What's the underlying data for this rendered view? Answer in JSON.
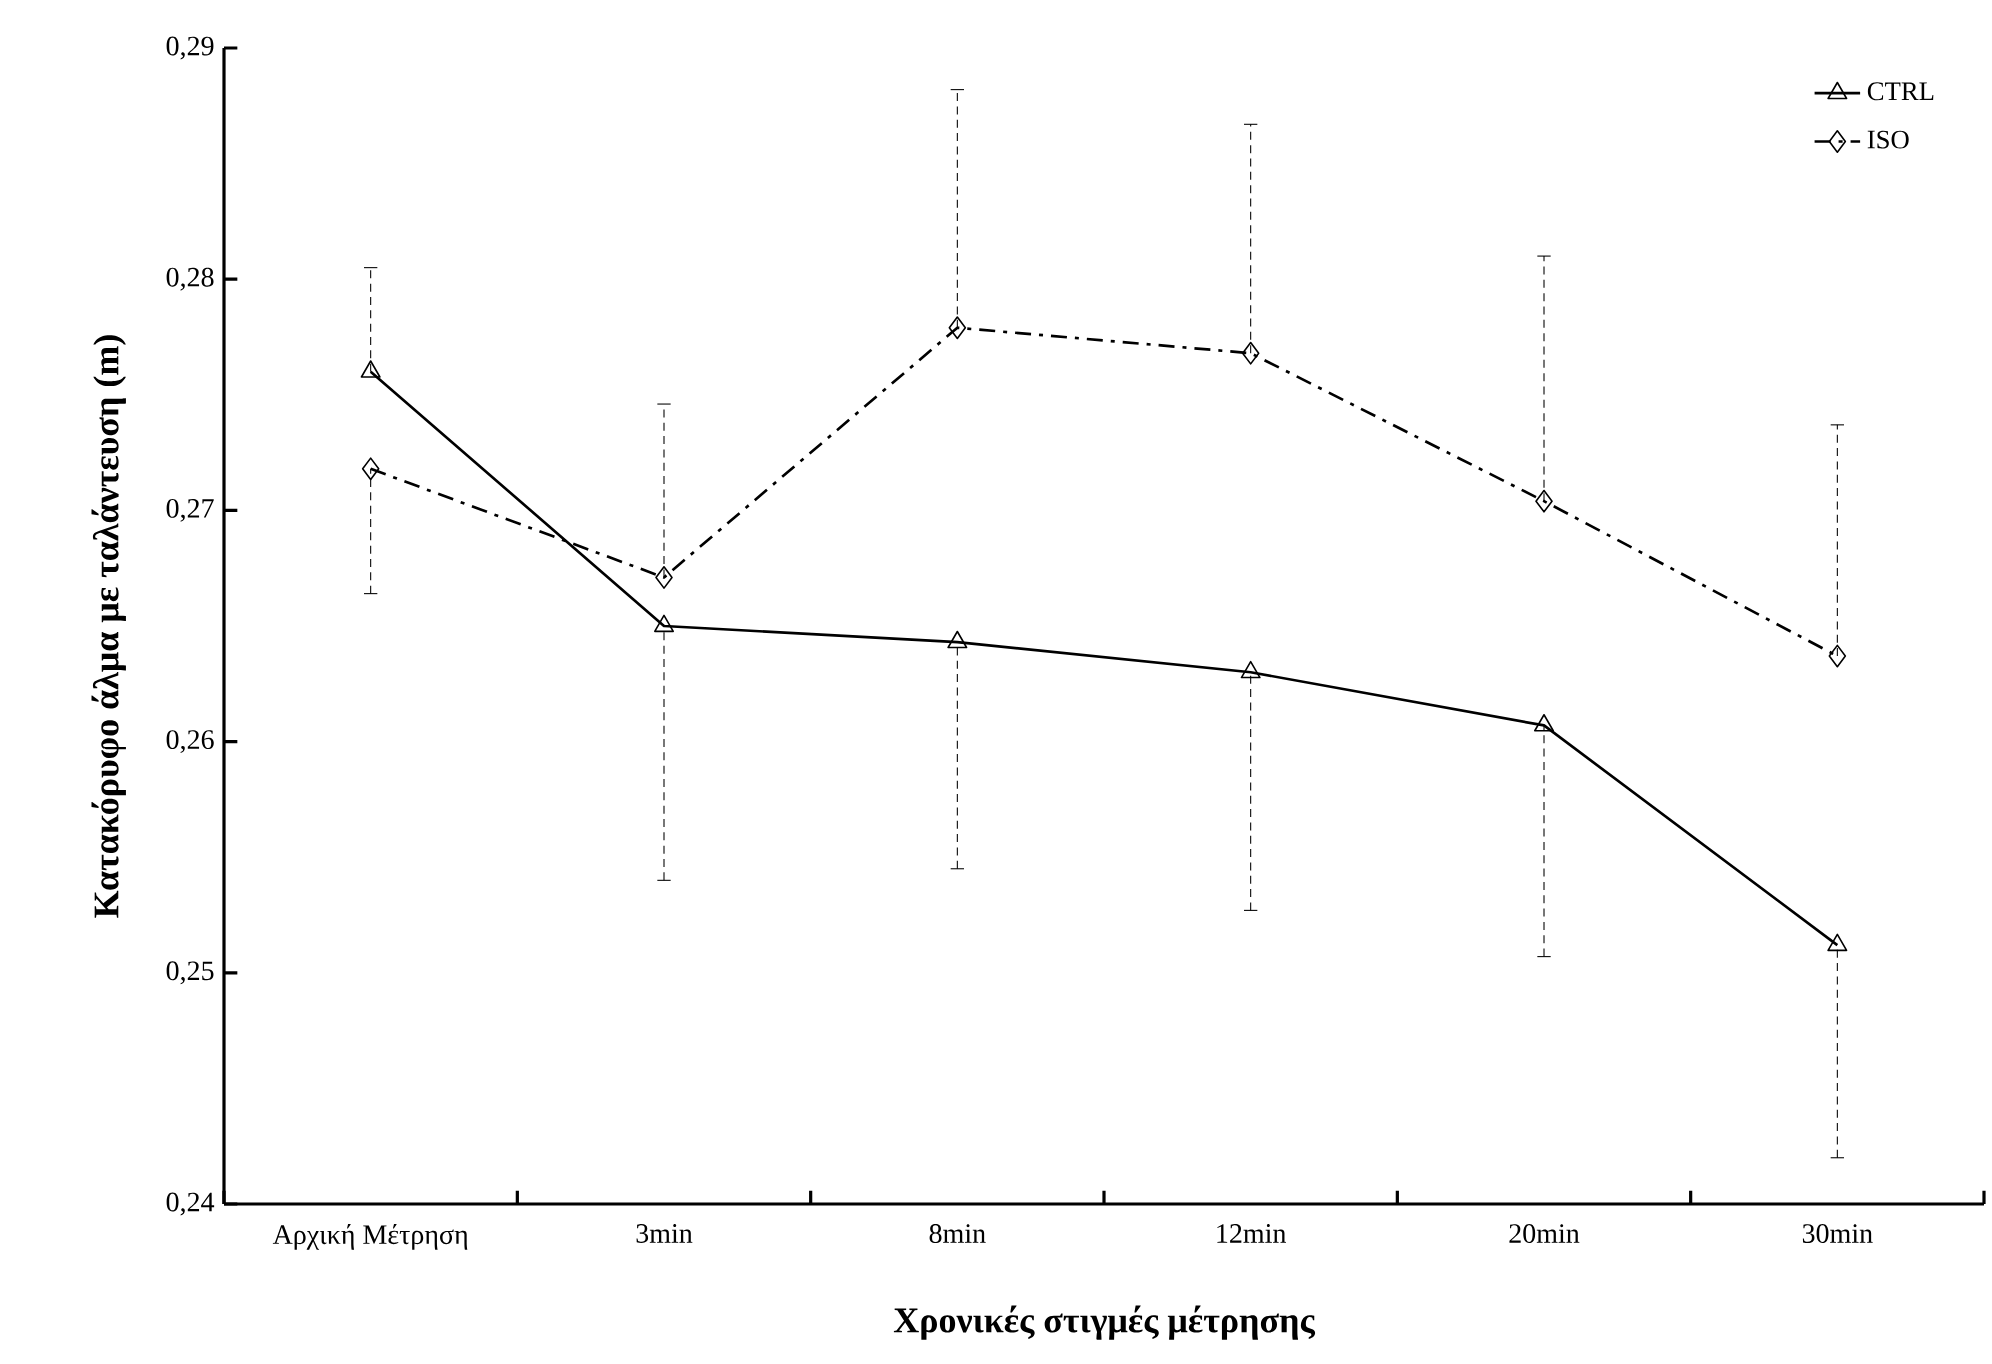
{
  "chart_data": {
    "type": "line",
    "xlabel": "Χρονικές στιγμές μέτρησης",
    "ylabel": "Κατακόρυφο άλμα με ταλάντευση (m)",
    "categories": [
      "Αρχική Μέτρηση",
      "3min",
      "8min",
      "12min",
      "20min",
      "30min"
    ],
    "series": [
      {
        "name": "CTRL",
        "color": "#000000",
        "marker": "triangle",
        "line_style": "solid",
        "values": [
          0.276,
          0.265,
          0.2643,
          0.263,
          0.2607,
          0.2512
        ],
        "errors": [
          [
            0.276,
            0.2805
          ],
          [
            0.254,
            0.265
          ],
          [
            0.2545,
            0.2643
          ],
          [
            0.2527,
            0.263
          ],
          [
            0.2507,
            0.2607
          ],
          [
            0.242,
            0.2512
          ]
        ]
      },
      {
        "name": "ISO",
        "color": "#000000",
        "marker": "diamond",
        "line_style": "dashed",
        "values": [
          0.2718,
          0.2671,
          0.2779,
          0.2768,
          0.2704,
          0.2637
        ],
        "errors": [
          [
            0.2664,
            0.2718
          ],
          [
            0.2671,
            0.2746
          ],
          [
            0.2779,
            0.2882
          ],
          [
            0.2768,
            0.2867
          ],
          [
            0.2704,
            0.281
          ],
          [
            0.2637,
            0.2737
          ]
        ]
      }
    ],
    "ylim": [
      0.24,
      0.29
    ],
    "yticks": [
      {
        "value": 0.24,
        "label": "0,24"
      },
      {
        "value": 0.25,
        "label": "0,25"
      },
      {
        "value": 0.26,
        "label": "0,26"
      },
      {
        "value": 0.27,
        "label": "0,27"
      },
      {
        "value": 0.28,
        "label": "0,28"
      },
      {
        "value": 0.29,
        "label": "0,29"
      }
    ],
    "grid": false,
    "legend": "top right"
  }
}
